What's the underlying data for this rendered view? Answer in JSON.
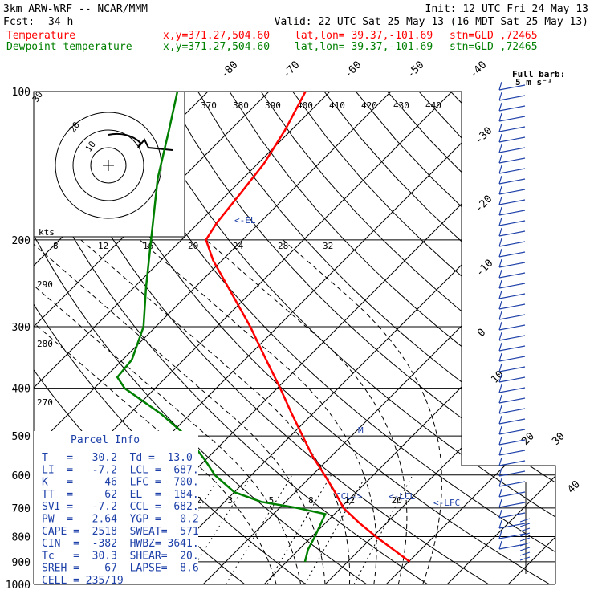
{
  "header": {
    "model": "3km ARW-WRF -- NCAR/MMM",
    "init": "Init: 12 UTC Fri 24 May 13",
    "fcst_label": "Fcst:",
    "fcst_hours": "34 h",
    "valid": "Valid: 22 UTC Sat 25 May 13 (16 MDT Sat 25 May 13)",
    "temp_label": "Temperature",
    "dew_label": "Dewpoint temperature",
    "xy": "x,y=371.27,504.60",
    "latlon": "lat,lon= 39.37,-101.69",
    "stn": "stn=GLD ,72465",
    "temp_color": "#ff0000",
    "dew_color": "#008000"
  },
  "chart_data": {
    "type": "line",
    "pressure_levels": [
      100,
      200,
      300,
      400,
      500,
      600,
      700,
      800,
      900,
      1000
    ],
    "isotherm_labels": [
      "-80",
      "-70",
      "-60",
      "-50",
      "-40",
      "-30",
      "-20",
      "-10",
      "0",
      "10",
      "20",
      "30",
      "40"
    ],
    "theta_labels": [
      "370",
      "380",
      "390",
      "400",
      "410",
      "420",
      "430",
      "440"
    ],
    "theta_low_labels": [
      "290",
      "280",
      "270"
    ],
    "mixing_ratio_labels": [
      "2",
      "3",
      "5",
      "8",
      "12",
      "20"
    ],
    "series": [
      {
        "name": "Temperature",
        "color": "#ff0000",
        "points": [
          {
            "p": 900,
            "t": 30.2
          },
          {
            "p": 850,
            "t": 25.5
          },
          {
            "p": 800,
            "t": 20.5
          },
          {
            "p": 750,
            "t": 15.5
          },
          {
            "p": 700,
            "t": 10.5
          },
          {
            "p": 650,
            "t": 6.5
          },
          {
            "p": 600,
            "t": 2.0
          },
          {
            "p": 550,
            "t": -3.0
          },
          {
            "p": 500,
            "t": -8.0
          },
          {
            "p": 450,
            "t": -13.5
          },
          {
            "p": 400,
            "t": -19.5
          },
          {
            "p": 350,
            "t": -26.5
          },
          {
            "p": 300,
            "t": -34.5
          },
          {
            "p": 250,
            "t": -44.5
          },
          {
            "p": 220,
            "t": -51.5
          },
          {
            "p": 200,
            "t": -56.0
          },
          {
            "p": 185,
            "t": -57.0
          },
          {
            "p": 160,
            "t": -58.0
          },
          {
            "p": 140,
            "t": -59.0
          },
          {
            "p": 120,
            "t": -61.0
          },
          {
            "p": 100,
            "t": -64.0
          }
        ]
      },
      {
        "name": "Dewpoint temperature",
        "color": "#008000",
        "points": [
          {
            "p": 900,
            "t": 13.0
          },
          {
            "p": 850,
            "t": 11.5
          },
          {
            "p": 800,
            "t": 10.5
          },
          {
            "p": 720,
            "t": 8.5
          },
          {
            "p": 700,
            "t": 3.0
          },
          {
            "p": 680,
            "t": -4.0
          },
          {
            "p": 650,
            "t": -10.0
          },
          {
            "p": 600,
            "t": -16.0
          },
          {
            "p": 560,
            "t": -20.0
          },
          {
            "p": 500,
            "t": -27.0
          },
          {
            "p": 450,
            "t": -35.0
          },
          {
            "p": 400,
            "t": -45.0
          },
          {
            "p": 380,
            "t": -48.0
          },
          {
            "p": 350,
            "t": -48.5
          },
          {
            "p": 300,
            "t": -52.0
          },
          {
            "p": 250,
            "t": -58.0
          },
          {
            "p": 200,
            "t": -65.0
          },
          {
            "p": 150,
            "t": -74.0
          },
          {
            "p": 120,
            "t": -80.0
          },
          {
            "p": 100,
            "t": -85.0
          }
        ]
      }
    ],
    "levels_markers": {
      "el": "<-EL",
      "lcl": "<-LCL",
      "lfc": "<-LFC",
      "ccl": "CCL->",
      "mw": "M"
    },
    "hodograph": {
      "units_label": "kts",
      "speed_labels": [
        "8",
        "12",
        "16",
        "20",
        "24",
        "28",
        "32"
      ],
      "ring_labels": [
        "10",
        "20",
        "30"
      ]
    },
    "wind_barb_label": "Full barb:\n5 m s⁻¹"
  },
  "parcel": {
    "title": "Parcel Info",
    "rows": [
      "T   =   30.2  Td =  13.0",
      "LI  =   -7.2  LCL =  687.",
      "K   =     46  LFC =  700.",
      "TT  =     62  EL  =  184.",
      "SVI =   -7.2  CCL =  682.",
      "PW  =   2.64  YGP =   0.2",
      "CAPE =  2518  SWEAT=  571",
      "CIN  =  -382  HWBZ= 3641.",
      "Tc   =  30.3  SHEAR=  20.",
      "SREH =    67  LAPSE=  8.6",
      "CELL = 235/19"
    ]
  }
}
